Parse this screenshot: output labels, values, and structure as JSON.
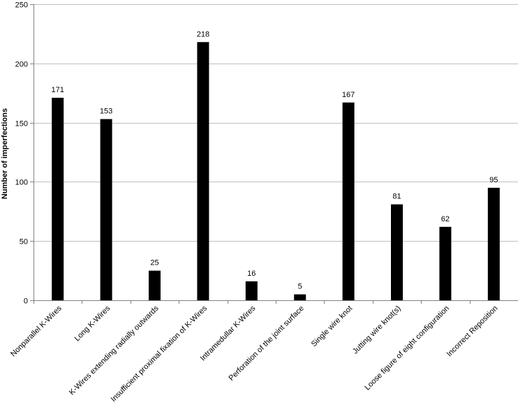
{
  "chart_data": {
    "type": "bar",
    "title": "",
    "xlabel": "",
    "ylabel": "Number of imperfections",
    "ylim": [
      0,
      250
    ],
    "yticks": [
      0,
      50,
      100,
      150,
      200,
      250
    ],
    "grid": true,
    "legend": "none",
    "bar_color": "#000000",
    "grid_color": "#bfbfbf",
    "categories": [
      "Nonparallel K-Wires",
      "Long K-Wires",
      "K-Wires extending radially outwards",
      "Insufficient proximal fixation of K-Wires",
      "Intramedullar K-Wires",
      "Perforation of the joint surface",
      "Single wire knot",
      "Jutting wire knot(s)",
      "Loose figure of eight configuration",
      "Incorrect Reposition"
    ],
    "values": [
      171,
      153,
      25,
      218,
      16,
      5,
      167,
      81,
      62,
      95
    ]
  }
}
